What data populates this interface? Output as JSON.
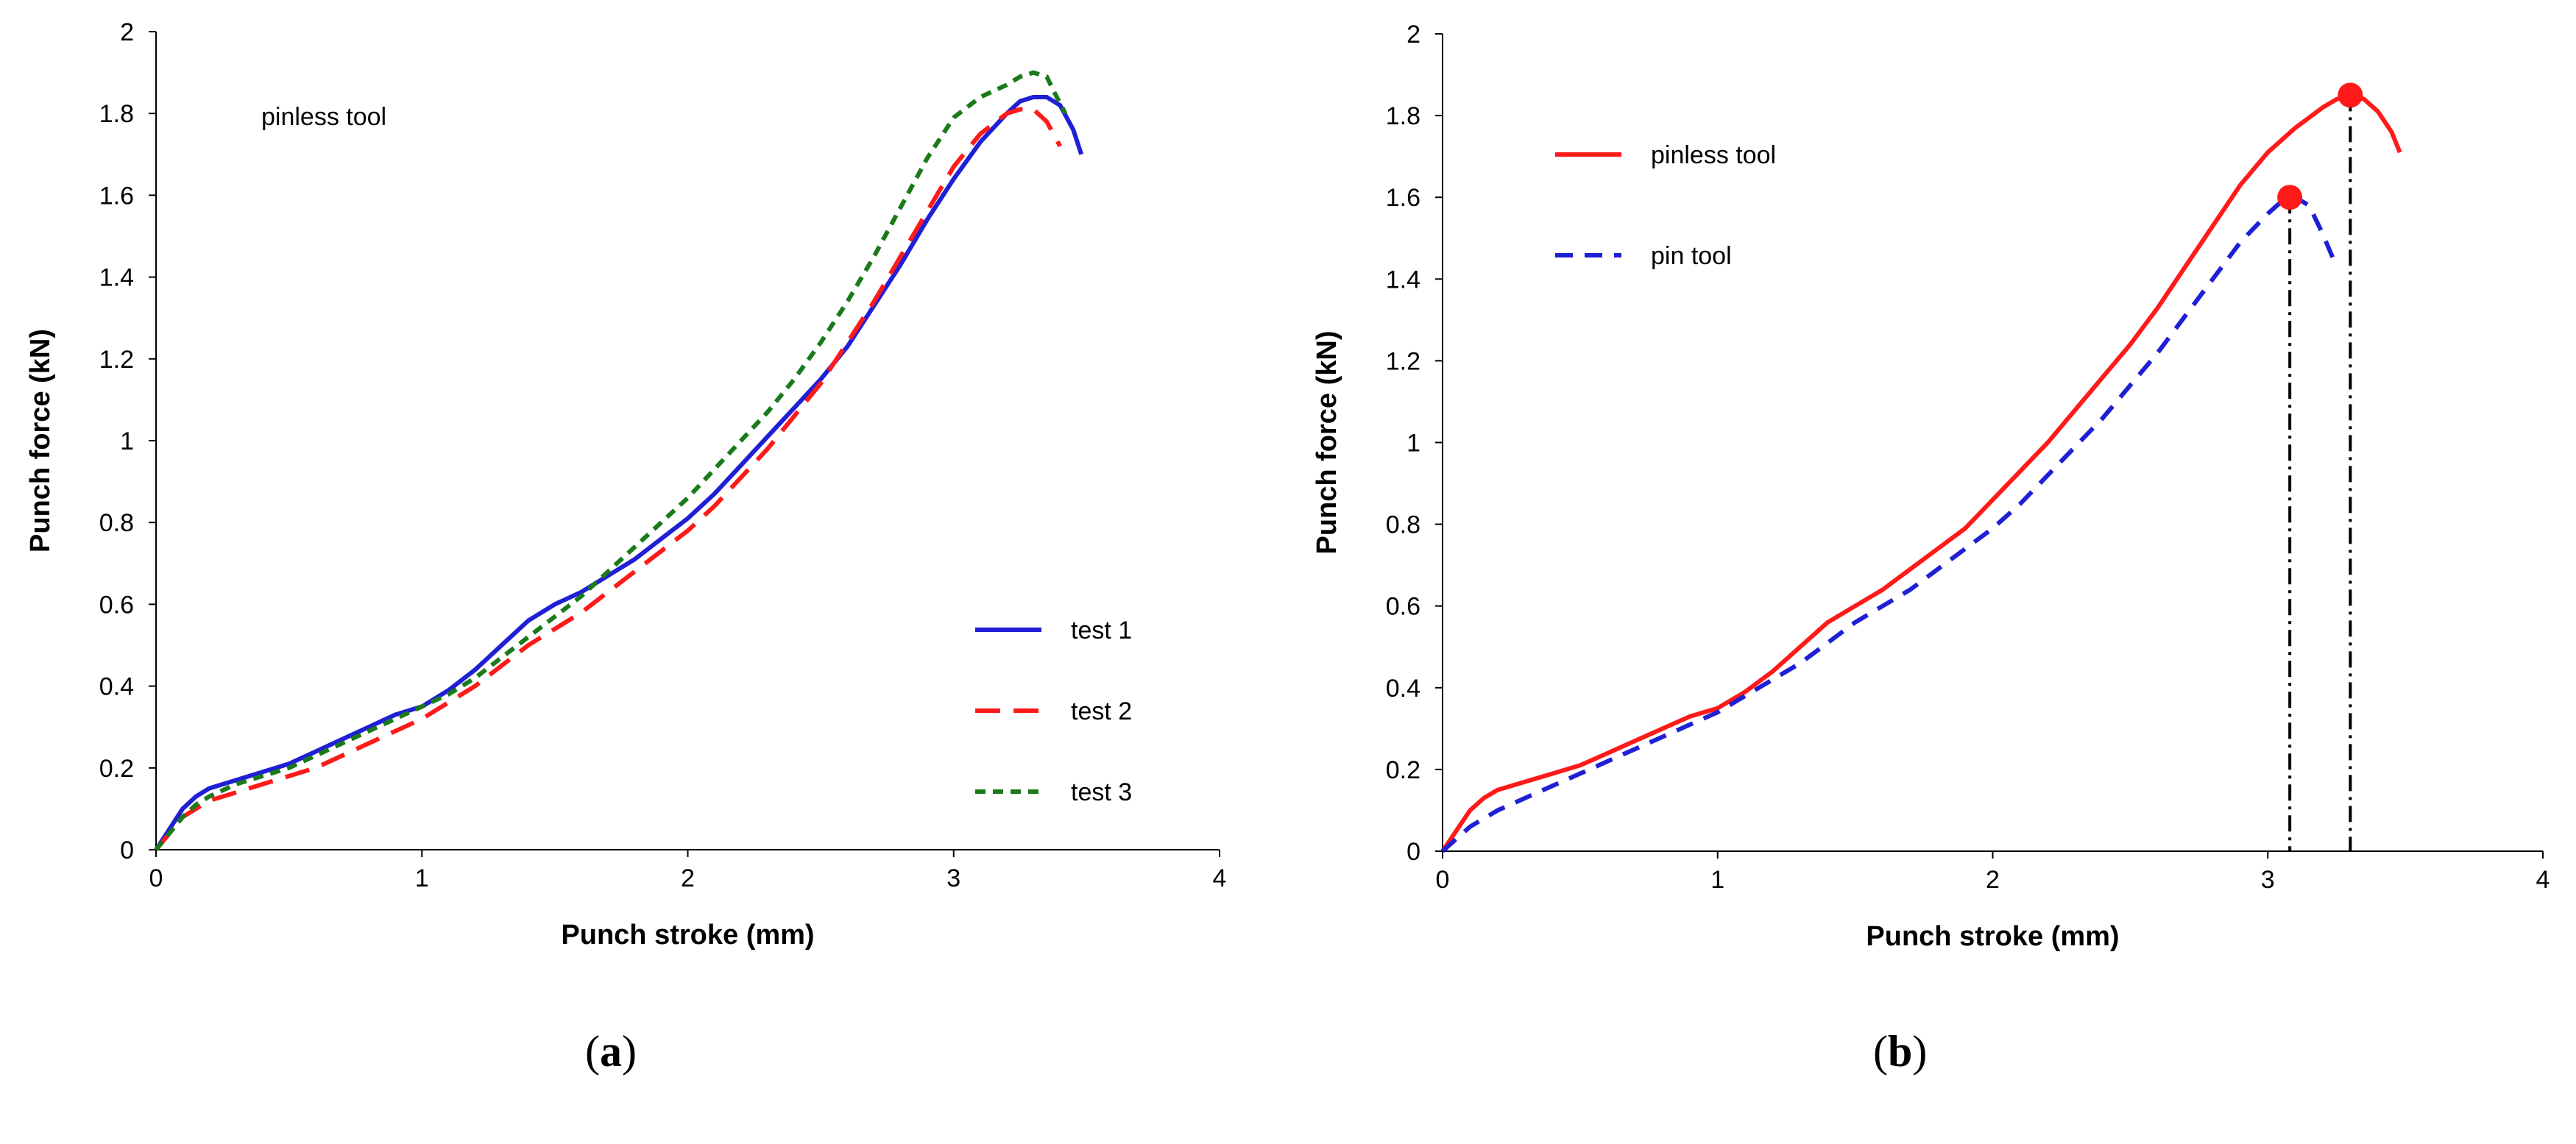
{
  "chart_data": [
    {
      "type": "line",
      "panel_label": "a",
      "xlabel": "Punch stroke (mm)",
      "ylabel": "Punch force (kN)",
      "xlim": [
        0,
        4
      ],
      "ylim": [
        0,
        2
      ],
      "x_ticks": [
        0,
        1,
        2,
        3,
        4
      ],
      "y_ticks": [
        0,
        0.2,
        0.4,
        0.6,
        0.8,
        1,
        1.2,
        1.4,
        1.6,
        1.8,
        2
      ],
      "y_tick_labels": [
        "0",
        "0.2",
        "0.4",
        "0.6",
        "0.8",
        "1",
        "1.2",
        "1.4",
        "1.6",
        "1.8",
        "2"
      ],
      "x_tick_labels": [
        "0",
        "1",
        "2",
        "3",
        "4"
      ],
      "annotation": "pinless tool",
      "legend_position": "bottom-right",
      "grid": false,
      "series": [
        {
          "name": "test 1",
          "color": "#1f1fd6",
          "dash": "solid",
          "x": [
            0,
            0.05,
            0.1,
            0.15,
            0.2,
            0.3,
            0.4,
            0.5,
            0.6,
            0.7,
            0.8,
            0.9,
            1.0,
            1.1,
            1.2,
            1.3,
            1.4,
            1.5,
            1.6,
            1.7,
            1.8,
            1.9,
            2.0,
            2.1,
            2.2,
            2.3,
            2.4,
            2.5,
            2.6,
            2.7,
            2.8,
            2.9,
            3.0,
            3.1,
            3.2,
            3.25,
            3.3,
            3.35,
            3.4,
            3.45,
            3.48
          ],
          "y": [
            0,
            0.05,
            0.1,
            0.13,
            0.15,
            0.17,
            0.19,
            0.21,
            0.24,
            0.27,
            0.3,
            0.33,
            0.35,
            0.39,
            0.44,
            0.5,
            0.56,
            0.6,
            0.63,
            0.67,
            0.71,
            0.76,
            0.81,
            0.87,
            0.94,
            1.01,
            1.08,
            1.15,
            1.23,
            1.33,
            1.43,
            1.54,
            1.64,
            1.73,
            1.8,
            1.83,
            1.84,
            1.84,
            1.82,
            1.76,
            1.7
          ]
        },
        {
          "name": "test 2",
          "color": "#ff1a1a",
          "dash": "long-dash",
          "x": [
            0,
            0.05,
            0.1,
            0.15,
            0.2,
            0.3,
            0.4,
            0.5,
            0.6,
            0.7,
            0.8,
            0.9,
            1.0,
            1.1,
            1.2,
            1.3,
            1.4,
            1.5,
            1.6,
            1.7,
            1.8,
            1.9,
            2.0,
            2.1,
            2.2,
            2.3,
            2.4,
            2.5,
            2.6,
            2.7,
            2.8,
            2.9,
            3.0,
            3.1,
            3.2,
            3.25,
            3.3,
            3.35,
            3.4
          ],
          "y": [
            0,
            0.04,
            0.08,
            0.1,
            0.12,
            0.14,
            0.16,
            0.18,
            0.2,
            0.23,
            0.26,
            0.29,
            0.32,
            0.36,
            0.4,
            0.45,
            0.5,
            0.54,
            0.58,
            0.63,
            0.68,
            0.73,
            0.78,
            0.84,
            0.91,
            0.98,
            1.06,
            1.14,
            1.24,
            1.34,
            1.45,
            1.56,
            1.67,
            1.75,
            1.8,
            1.81,
            1.81,
            1.78,
            1.72
          ]
        },
        {
          "name": "test 3",
          "color": "#1a7a1a",
          "dash": "short-dash",
          "x": [
            0,
            0.05,
            0.1,
            0.15,
            0.2,
            0.3,
            0.4,
            0.5,
            0.6,
            0.7,
            0.8,
            0.9,
            1.0,
            1.1,
            1.2,
            1.3,
            1.4,
            1.5,
            1.6,
            1.7,
            1.8,
            1.9,
            2.0,
            2.1,
            2.2,
            2.3,
            2.4,
            2.5,
            2.6,
            2.7,
            2.8,
            2.9,
            3.0,
            3.1,
            3.2,
            3.25,
            3.3,
            3.35,
            3.38,
            3.42
          ],
          "y": [
            0,
            0.04,
            0.08,
            0.11,
            0.13,
            0.16,
            0.18,
            0.2,
            0.23,
            0.26,
            0.29,
            0.32,
            0.35,
            0.38,
            0.42,
            0.47,
            0.52,
            0.57,
            0.62,
            0.68,
            0.74,
            0.8,
            0.86,
            0.93,
            1.0,
            1.07,
            1.15,
            1.24,
            1.34,
            1.45,
            1.57,
            1.69,
            1.79,
            1.84,
            1.87,
            1.89,
            1.9,
            1.89,
            1.85,
            1.8
          ]
        }
      ]
    },
    {
      "type": "line",
      "panel_label": "b",
      "xlabel": "Punch stroke (mm)",
      "ylabel": "Punch force (kN)",
      "xlim": [
        0,
        4
      ],
      "ylim": [
        0,
        2
      ],
      "x_ticks": [
        0,
        1,
        2,
        3,
        4
      ],
      "y_ticks": [
        0,
        0.2,
        0.4,
        0.6,
        0.8,
        1,
        1.2,
        1.4,
        1.6,
        1.8,
        2
      ],
      "y_tick_labels": [
        "0",
        "0.2",
        "0.4",
        "0.6",
        "0.8",
        "1",
        "1.2",
        "1.4",
        "1.6",
        "1.8",
        "2"
      ],
      "x_tick_labels": [
        "0",
        "1",
        "2",
        "3",
        "4"
      ],
      "legend_position": "top-left",
      "grid": false,
      "series": [
        {
          "name": "pinless tool",
          "color": "#ff1a1a",
          "dash": "solid",
          "x": [
            0,
            0.05,
            0.1,
            0.15,
            0.2,
            0.3,
            0.4,
            0.5,
            0.6,
            0.7,
            0.8,
            0.9,
            1.0,
            1.1,
            1.2,
            1.3,
            1.4,
            1.5,
            1.6,
            1.7,
            1.8,
            1.9,
            2.0,
            2.1,
            2.2,
            2.3,
            2.4,
            2.5,
            2.6,
            2.7,
            2.8,
            2.9,
            3.0,
            3.1,
            3.2,
            3.25,
            3.3,
            3.35,
            3.4,
            3.45,
            3.48
          ],
          "y": [
            0,
            0.05,
            0.1,
            0.13,
            0.15,
            0.17,
            0.19,
            0.21,
            0.24,
            0.27,
            0.3,
            0.33,
            0.35,
            0.39,
            0.44,
            0.5,
            0.56,
            0.6,
            0.64,
            0.69,
            0.74,
            0.79,
            0.86,
            0.93,
            1.0,
            1.08,
            1.16,
            1.24,
            1.33,
            1.43,
            1.53,
            1.63,
            1.71,
            1.77,
            1.82,
            1.84,
            1.85,
            1.84,
            1.81,
            1.76,
            1.71
          ]
        },
        {
          "name": "pin tool",
          "color": "#1f1fd6",
          "dash": "dash",
          "x": [
            0,
            0.05,
            0.1,
            0.15,
            0.2,
            0.3,
            0.4,
            0.5,
            0.6,
            0.7,
            0.8,
            0.9,
            1.0,
            1.1,
            1.2,
            1.3,
            1.4,
            1.5,
            1.6,
            1.7,
            1.8,
            1.9,
            2.0,
            2.1,
            2.2,
            2.3,
            2.4,
            2.5,
            2.6,
            2.7,
            2.8,
            2.9,
            3.0,
            3.05,
            3.1,
            3.15,
            3.2,
            3.25
          ],
          "y": [
            0,
            0.03,
            0.06,
            0.08,
            0.1,
            0.13,
            0.16,
            0.19,
            0.22,
            0.25,
            0.28,
            0.31,
            0.34,
            0.38,
            0.42,
            0.46,
            0.51,
            0.56,
            0.6,
            0.64,
            0.69,
            0.74,
            0.79,
            0.85,
            0.92,
            0.99,
            1.06,
            1.14,
            1.22,
            1.31,
            1.4,
            1.49,
            1.56,
            1.59,
            1.6,
            1.58,
            1.51,
            1.43
          ]
        }
      ],
      "peak_markers": [
        {
          "label": "pin tool peak",
          "x": 3.08,
          "y": 1.6,
          "color": "#ff1a1a"
        },
        {
          "label": "pinless tool peak",
          "x": 3.3,
          "y": 1.85,
          "color": "#ff1a1a"
        }
      ]
    }
  ]
}
